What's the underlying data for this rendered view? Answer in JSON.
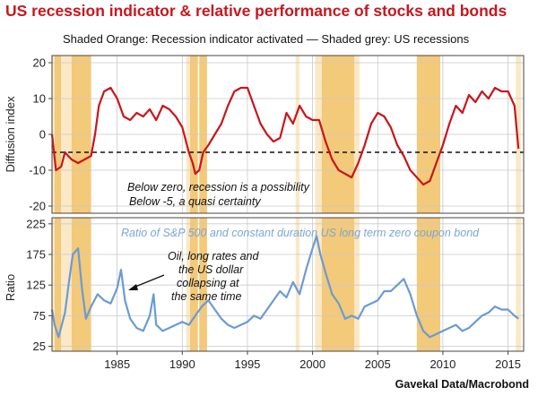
{
  "title": "US recession indicator & relative performance of stocks and bonds",
  "subtitle": "Shaded Orange: Recession indicator activated — Shaded grey: US recessions",
  "source": "Gavekal Data/Macrobond",
  "colors": {
    "title": "#c8161d",
    "diffusion_line": "#c8161d",
    "ratio_line": "#6b9bd2",
    "shade_orange": "#f3c97a",
    "shade_light": "#fbe8c6"
  },
  "chart_data": [
    {
      "type": "line",
      "ylabel": "Diffusion index",
      "ylim": [
        -22,
        22
      ],
      "yticks": [
        -20,
        -10,
        0,
        10,
        20
      ],
      "xlim": [
        1980,
        2016.2
      ],
      "xticks": [
        1985,
        1990,
        1995,
        2000,
        2005,
        2010,
        2015
      ],
      "threshold": -5,
      "annotations": [
        "Below zero, recession is a possibility",
        "Below -5, a quasi certainty"
      ],
      "shaded_orange": [
        [
          1980.2,
          1980.7
        ],
        [
          1981.5,
          1983.0
        ],
        [
          1990.6,
          1991.2
        ],
        [
          1991.3,
          1991.9
        ],
        [
          2000.7,
          2003.2
        ],
        [
          2008.0,
          2009.8
        ]
      ],
      "shaded_light": [
        [
          1980.0,
          1980.2
        ],
        [
          1980.7,
          1981.5
        ],
        [
          1990.3,
          1990.6
        ],
        [
          1998.7,
          1999.0
        ],
        [
          2000.2,
          2000.7
        ],
        [
          2003.2,
          2003.6
        ],
        [
          2015.6,
          2016.0
        ]
      ],
      "series": [
        {
          "x": [
            1980.0,
            1980.3,
            1980.7,
            1981.0,
            1981.5,
            1982.0,
            1982.5,
            1983.0,
            1983.3,
            1983.6,
            1984.0,
            1984.5,
            1985.0,
            1985.5,
            1986.0,
            1986.5,
            1987.0,
            1987.5,
            1988.0,
            1988.5,
            1989.0,
            1989.5,
            1990.0,
            1990.5,
            1990.8,
            1991.0,
            1991.3,
            1991.6,
            1992.0,
            1992.5,
            1993.0,
            1993.5,
            1994.0,
            1994.5,
            1995.0,
            1995.5,
            1996.0,
            1996.5,
            1997.0,
            1997.5,
            1998.0,
            1998.5,
            1999.0,
            1999.5,
            2000.0,
            2000.5,
            2001.0,
            2001.5,
            2002.0,
            2002.5,
            2003.0,
            2003.5,
            2004.0,
            2004.5,
            2005.0,
            2005.5,
            2006.0,
            2006.5,
            2007.0,
            2007.5,
            2008.0,
            2008.5,
            2009.0,
            2009.5,
            2010.0,
            2010.5,
            2011.0,
            2011.5,
            2012.0,
            2012.5,
            2013.0,
            2013.5,
            2014.0,
            2014.5,
            2015.0,
            2015.5,
            2015.8
          ],
          "y": [
            0,
            -10,
            -9,
            -5,
            -7,
            -8,
            -7,
            -6,
            0,
            8,
            12,
            13,
            10,
            5,
            4,
            6,
            5,
            7,
            4,
            8,
            7,
            5,
            2,
            -5,
            -8,
            -11,
            -10,
            -5,
            -3,
            0,
            3,
            8,
            12,
            13,
            13,
            8,
            3,
            0,
            -2,
            -1,
            6,
            3,
            8,
            5,
            4,
            4,
            -2,
            -7,
            -10,
            -11,
            -12,
            -8,
            -3,
            3,
            6,
            5,
            2,
            -3,
            -6,
            -10,
            -12,
            -14,
            -13,
            -8,
            -3,
            3,
            8,
            6,
            11,
            9,
            12,
            10,
            13,
            12,
            12,
            8,
            -4
          ]
        }
      ]
    },
    {
      "type": "line",
      "ylabel": "Ratio",
      "ylim": [
        17,
        235
      ],
      "yticks": [
        25,
        75,
        125,
        175,
        225
      ],
      "xlim": [
        1980,
        2016.2
      ],
      "xticks": [
        1985,
        1990,
        1995,
        2000,
        2005,
        2010,
        2015
      ],
      "annotations": [
        "Ratio of S&P 500 and constant duration US long term zero coupon bond",
        "Oil, long rates and",
        "the US dollar",
        "collapsing at",
        "the same time"
      ],
      "shaded_orange": [
        [
          1980.2,
          1980.7
        ],
        [
          1981.5,
          1983.0
        ],
        [
          1990.6,
          1991.2
        ],
        [
          1991.3,
          1991.9
        ],
        [
          2000.7,
          2003.2
        ],
        [
          2008.0,
          2009.8
        ]
      ],
      "shaded_light": [
        [
          1980.0,
          1980.2
        ],
        [
          1980.7,
          1981.5
        ],
        [
          1990.3,
          1990.6
        ],
        [
          1998.7,
          1999.0
        ],
        [
          2000.2,
          2000.7
        ],
        [
          2003.2,
          2003.6
        ],
        [
          2015.6,
          2016.0
        ]
      ],
      "series": [
        {
          "x": [
            1980.0,
            1980.2,
            1980.5,
            1981.0,
            1981.3,
            1981.6,
            1982.0,
            1982.3,
            1982.6,
            1983.0,
            1983.5,
            1984.0,
            1984.5,
            1985.0,
            1985.3,
            1985.6,
            1986.0,
            1986.5,
            1987.0,
            1987.5,
            1987.8,
            1988.0,
            1988.5,
            1989.0,
            1989.5,
            1990.0,
            1990.5,
            1991.0,
            1991.5,
            1992.0,
            1992.5,
            1993.0,
            1993.5,
            1994.0,
            1994.5,
            1995.0,
            1995.5,
            1996.0,
            1996.5,
            1997.0,
            1997.5,
            1998.0,
            1998.5,
            1999.0,
            1999.5,
            2000.0,
            2000.3,
            2000.6,
            2001.0,
            2001.5,
            2002.0,
            2002.5,
            2003.0,
            2003.5,
            2004.0,
            2004.5,
            2005.0,
            2005.5,
            2006.0,
            2006.5,
            2007.0,
            2007.5,
            2008.0,
            2008.5,
            2009.0,
            2009.5,
            2010.0,
            2010.5,
            2011.0,
            2011.5,
            2012.0,
            2012.5,
            2013.0,
            2013.5,
            2014.0,
            2014.5,
            2015.0,
            2015.5,
            2015.8
          ],
          "y": [
            85,
            60,
            40,
            80,
            130,
            175,
            185,
            120,
            70,
            90,
            110,
            100,
            95,
            120,
            150,
            100,
            70,
            55,
            50,
            75,
            110,
            60,
            50,
            55,
            60,
            65,
            60,
            75,
            90,
            100,
            85,
            70,
            60,
            55,
            60,
            65,
            75,
            70,
            85,
            100,
            115,
            105,
            130,
            110,
            150,
            185,
            205,
            175,
            145,
            110,
            95,
            70,
            75,
            70,
            90,
            95,
            100,
            115,
            115,
            125,
            135,
            110,
            75,
            50,
            40,
            45,
            50,
            55,
            60,
            50,
            55,
            65,
            75,
            80,
            90,
            85,
            85,
            75,
            70
          ]
        }
      ]
    }
  ]
}
